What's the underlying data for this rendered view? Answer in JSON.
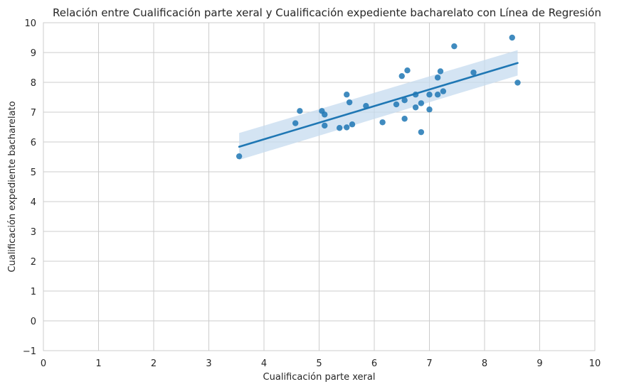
{
  "chart_data": {
    "type": "scatter",
    "title": "Relación entre Cualificación parte xeral y Cualificación expediente bacharelato con Línea de Regresión",
    "xlabel": "Cualificación parte xeral",
    "ylabel": "Cualificación expediente bacharelato",
    "xlim": [
      0,
      10
    ],
    "ylim": [
      -1,
      10
    ],
    "xticks": [
      "0",
      "1",
      "2",
      "3",
      "4",
      "5",
      "6",
      "7",
      "8",
      "9",
      "10"
    ],
    "yticks": [
      "−1",
      "0",
      "1",
      "2",
      "3",
      "4",
      "5",
      "6",
      "7",
      "8",
      "9",
      "10"
    ],
    "grid": true,
    "points": [
      [
        3.55,
        5.52
      ],
      [
        4.57,
        6.63
      ],
      [
        4.65,
        7.04
      ],
      [
        5.05,
        7.04
      ],
      [
        5.1,
        6.55
      ],
      [
        5.1,
        6.92
      ],
      [
        5.37,
        6.47
      ],
      [
        5.5,
        6.49
      ],
      [
        5.5,
        7.59
      ],
      [
        5.55,
        7.33
      ],
      [
        5.6,
        6.59
      ],
      [
        5.85,
        7.21
      ],
      [
        6.15,
        6.66
      ],
      [
        6.4,
        7.26
      ],
      [
        6.5,
        8.21
      ],
      [
        6.55,
        6.78
      ],
      [
        6.55,
        7.4
      ],
      [
        6.6,
        8.4
      ],
      [
        6.75,
        7.16
      ],
      [
        6.75,
        7.59
      ],
      [
        6.85,
        6.33
      ],
      [
        6.85,
        7.3
      ],
      [
        7.0,
        7.09
      ],
      [
        7.0,
        7.59
      ],
      [
        7.15,
        7.59
      ],
      [
        7.15,
        8.16
      ],
      [
        7.2,
        8.37
      ],
      [
        7.25,
        7.7
      ],
      [
        7.45,
        9.21
      ],
      [
        7.8,
        8.33
      ],
      [
        8.5,
        9.5
      ],
      [
        8.6,
        7.99
      ]
    ],
    "regression": {
      "x": [
        3.55,
        8.6
      ],
      "y": [
        5.84,
        8.65
      ],
      "ci_upper": [
        6.3,
        9.08
      ],
      "ci_lower": [
        5.4,
        8.23
      ]
    },
    "colors": {
      "points": "#1f77b4",
      "line": "#1f77b4",
      "band": "#c6dbef",
      "grid": "#cccccc"
    }
  }
}
